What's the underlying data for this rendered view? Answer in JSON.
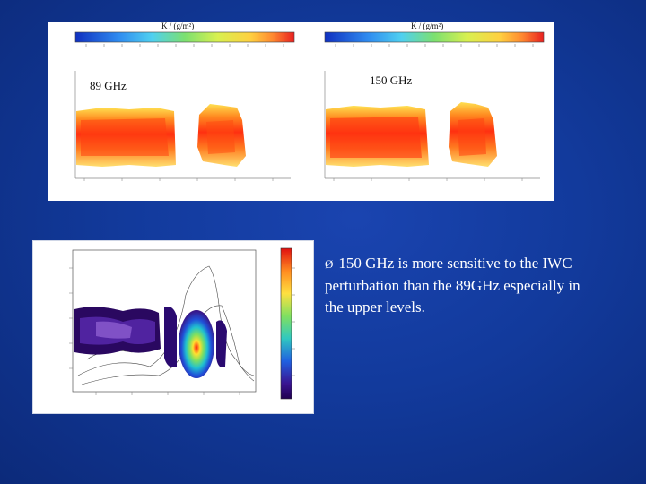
{
  "top_panel": {
    "left_colorbar_unit": "K / (g/m²)",
    "right_colorbar_unit": "K / (g/m²)",
    "left_label": "89 GHz",
    "right_label": "150 GHz"
  },
  "bullet": {
    "marker": "Ø",
    "text": "150 GHz is more sensitive to the IWC perturbation than the 89GHz especially in the upper levels."
  },
  "colors": {
    "background": "#123a9c",
    "text": "#ffffff"
  }
}
